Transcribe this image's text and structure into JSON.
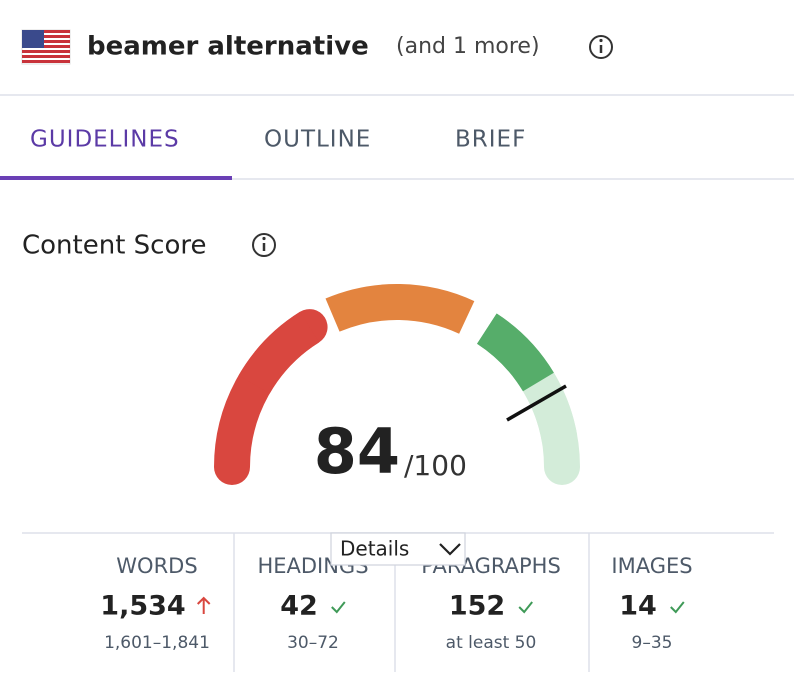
{
  "header": {
    "keyword": "beamer alternative",
    "more": "(and 1 more)"
  },
  "tabs": [
    "GUIDELINES",
    "OUTLINE",
    "BRIEF"
  ],
  "content_score": {
    "title": "Content Score",
    "score": "84",
    "max": "/100",
    "details": "Details"
  },
  "metrics": [
    {
      "label": "WORDS",
      "value": "1,534",
      "range": "1,601–1,841"
    },
    {
      "label": "HEADINGS",
      "value": "42",
      "range": "30–72"
    },
    {
      "label": "PARAGRAPHS",
      "value": "152",
      "range": "at least 50"
    },
    {
      "label": "IMAGES",
      "value": "14",
      "range": "9–35"
    }
  ]
}
